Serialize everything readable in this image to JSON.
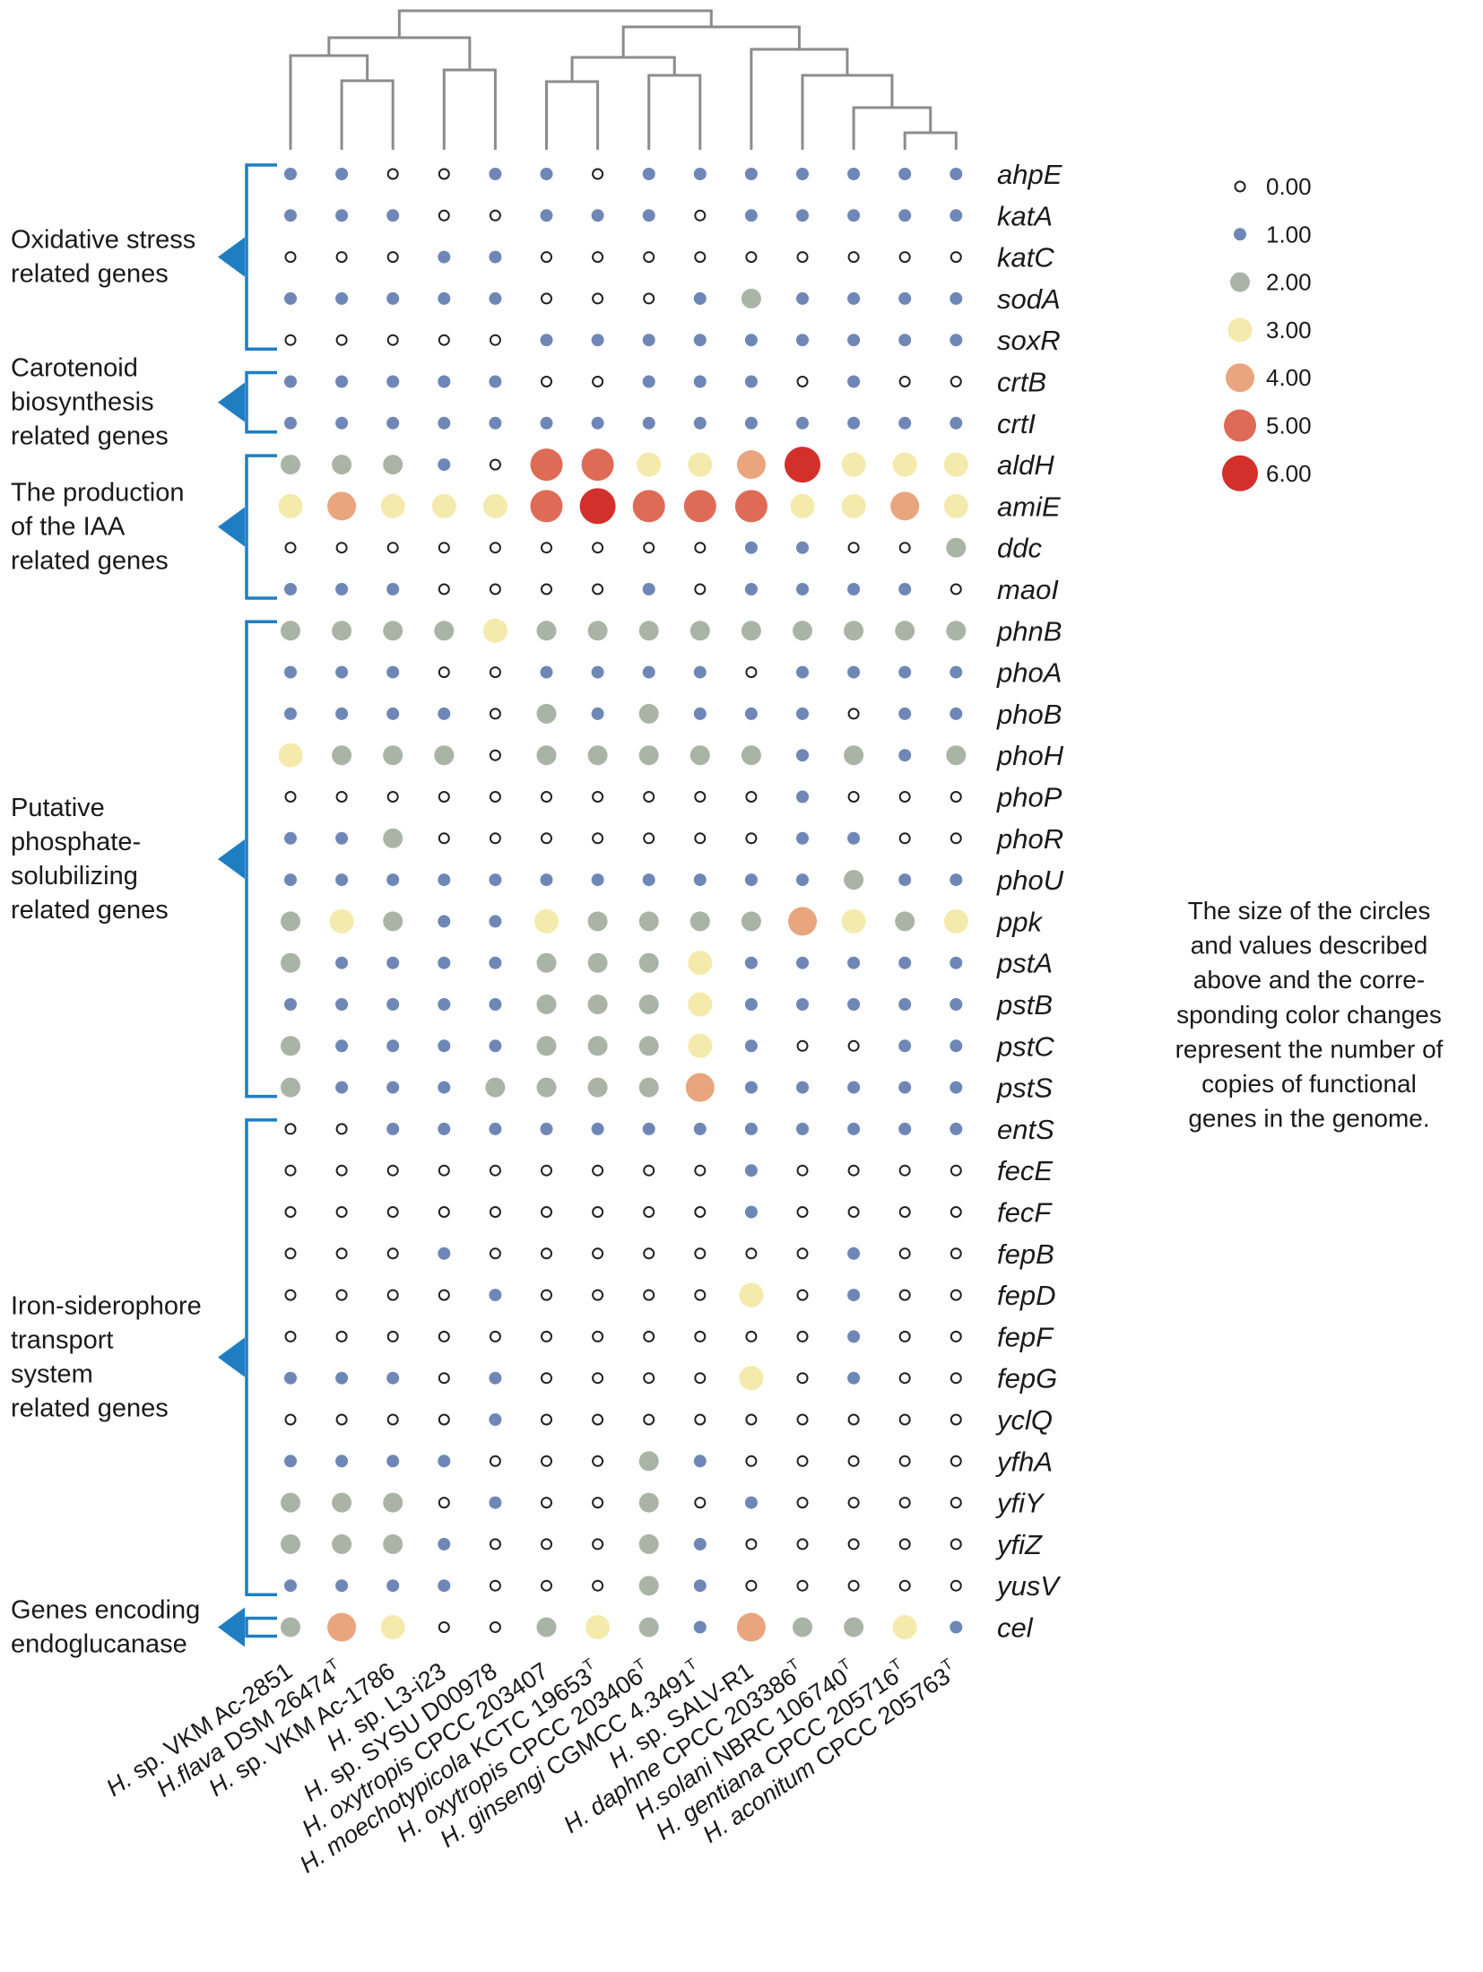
{
  "chart_data": {
    "type": "dot-matrix",
    "title": "",
    "value_meaning": "The size of the circles and values described above and the corresponding color changes represent the number of copies of functional genes in the genome.",
    "strains": [
      {
        "pre": "H.",
        "italic": "",
        "rest": " sp. VKM Ac-2851",
        "sup": ""
      },
      {
        "pre": "",
        "italic": "H.flava",
        "rest": " DSM 26474",
        "sup": "T"
      },
      {
        "pre": "H.",
        "italic": "",
        "rest": " sp. VKM Ac-1786",
        "sup": ""
      },
      {
        "pre": "H.",
        "italic": "",
        "rest": " sp. L3-i23",
        "sup": ""
      },
      {
        "pre": "H.",
        "italic": "",
        "rest": " sp. SYSU D00978",
        "sup": ""
      },
      {
        "pre": "",
        "italic": "H. oxytropis",
        "rest": " CPCC 203407",
        "sup": ""
      },
      {
        "pre": "",
        "italic": "H. moechotypicola",
        "rest": " KCTC 19653",
        "sup": "T"
      },
      {
        "pre": "",
        "italic": "H. oxytropis",
        "rest": " CPCC 203406",
        "sup": "T"
      },
      {
        "pre": "",
        "italic": "H. ginsengi",
        "rest": " CGMCC 4.3491",
        "sup": "T"
      },
      {
        "pre": "H.",
        "italic": "",
        "rest": " sp. SALV-R1",
        "sup": ""
      },
      {
        "pre": "",
        "italic": "H. daphne",
        "rest": " CPCC 203386",
        "sup": "T"
      },
      {
        "pre": "",
        "italic": "H.solani",
        "rest": " NBRC 106740",
        "sup": "T"
      },
      {
        "pre": "",
        "italic": "H. gentiana",
        "rest": " CPCC 205716",
        "sup": "T"
      },
      {
        "pre": "",
        "italic": "H. aconitum",
        "rest": " CPCC 205763",
        "sup": "T"
      }
    ],
    "genes": [
      "ahpE",
      "katA",
      "katC",
      "sodA",
      "soxR",
      "crtB",
      "crtI",
      "aldH",
      "amiE",
      "ddc",
      "maoI",
      "phnB",
      "phoA",
      "phoB",
      "phoH",
      "phoP",
      "phoR",
      "phoU",
      "ppk",
      "pstA",
      "pstB",
      "pstC",
      "pstS",
      "entS",
      "fecE",
      "fecF",
      "fepB",
      "fepD",
      "fepF",
      "fepG",
      "yclQ",
      "yfhA",
      "yfiY",
      "yfiZ",
      "yusV",
      "cel"
    ],
    "values": [
      [
        1,
        1,
        0,
        0,
        1,
        1,
        0,
        1,
        1,
        1,
        1,
        1,
        1,
        1
      ],
      [
        1,
        1,
        1,
        0,
        0,
        1,
        1,
        1,
        0,
        1,
        1,
        1,
        1,
        1
      ],
      [
        0,
        0,
        0,
        1,
        1,
        0,
        0,
        0,
        0,
        0,
        0,
        0,
        0,
        0
      ],
      [
        1,
        1,
        1,
        1,
        1,
        0,
        0,
        0,
        1,
        2,
        1,
        1,
        1,
        1
      ],
      [
        0,
        0,
        0,
        0,
        0,
        1,
        1,
        1,
        1,
        1,
        1,
        1,
        1,
        1
      ],
      [
        1,
        1,
        1,
        1,
        1,
        0,
        0,
        1,
        1,
        1,
        0,
        1,
        0,
        0
      ],
      [
        1,
        1,
        1,
        1,
        1,
        1,
        1,
        1,
        1,
        1,
        1,
        1,
        1,
        1
      ],
      [
        2,
        2,
        2,
        1,
        0,
        5,
        5,
        3,
        3,
        4,
        6,
        3,
        3,
        3
      ],
      [
        3,
        4,
        3,
        3,
        3,
        5,
        6,
        5,
        5,
        5,
        3,
        3,
        4,
        3
      ],
      [
        0,
        0,
        0,
        0,
        0,
        0,
        0,
        0,
        0,
        1,
        1,
        0,
        0,
        2
      ],
      [
        1,
        1,
        1,
        0,
        0,
        0,
        0,
        1,
        0,
        1,
        1,
        1,
        1,
        0
      ],
      [
        2,
        2,
        2,
        2,
        3,
        2,
        2,
        2,
        2,
        2,
        2,
        2,
        2,
        2
      ],
      [
        1,
        1,
        1,
        0,
        0,
        1,
        1,
        1,
        1,
        0,
        1,
        1,
        1,
        1
      ],
      [
        1,
        1,
        1,
        1,
        0,
        2,
        1,
        2,
        1,
        1,
        1,
        0,
        1,
        1
      ],
      [
        3,
        2,
        2,
        2,
        0,
        2,
        2,
        2,
        2,
        2,
        1,
        2,
        1,
        2
      ],
      [
        0,
        0,
        0,
        0,
        0,
        0,
        0,
        0,
        0,
        0,
        1,
        0,
        0,
        0
      ],
      [
        1,
        1,
        2,
        0,
        0,
        0,
        0,
        0,
        0,
        0,
        1,
        1,
        0,
        0
      ],
      [
        1,
        1,
        1,
        1,
        1,
        1,
        1,
        1,
        1,
        1,
        1,
        2,
        1,
        1
      ],
      [
        2,
        3,
        2,
        1,
        1,
        3,
        2,
        2,
        2,
        2,
        4,
        3,
        2,
        3
      ],
      [
        2,
        1,
        1,
        1,
        1,
        2,
        2,
        2,
        3,
        1,
        1,
        1,
        1,
        1
      ],
      [
        1,
        1,
        1,
        1,
        1,
        2,
        2,
        2,
        3,
        1,
        1,
        1,
        1,
        1
      ],
      [
        2,
        1,
        1,
        1,
        1,
        2,
        2,
        2,
        3,
        1,
        0,
        0,
        1,
        1
      ],
      [
        2,
        1,
        1,
        1,
        2,
        2,
        2,
        2,
        4,
        1,
        1,
        1,
        1,
        1
      ],
      [
        0,
        0,
        1,
        1,
        1,
        1,
        1,
        1,
        1,
        1,
        1,
        1,
        1,
        1
      ],
      [
        0,
        0,
        0,
        0,
        0,
        0,
        0,
        0,
        0,
        1,
        0,
        0,
        0,
        0
      ],
      [
        0,
        0,
        0,
        0,
        0,
        0,
        0,
        0,
        0,
        1,
        0,
        0,
        0,
        0
      ],
      [
        0,
        0,
        0,
        1,
        0,
        0,
        0,
        0,
        0,
        0,
        0,
        1,
        0,
        0
      ],
      [
        0,
        0,
        0,
        0,
        1,
        0,
        0,
        0,
        0,
        3,
        0,
        1,
        0,
        0
      ],
      [
        0,
        0,
        0,
        0,
        0,
        0,
        0,
        0,
        0,
        0,
        0,
        1,
        0,
        0
      ],
      [
        1,
        1,
        1,
        0,
        1,
        0,
        0,
        0,
        0,
        3,
        0,
        1,
        0,
        0
      ],
      [
        0,
        0,
        0,
        0,
        1,
        0,
        0,
        0,
        0,
        0,
        0,
        0,
        0,
        0
      ],
      [
        1,
        1,
        1,
        1,
        0,
        0,
        0,
        2,
        1,
        0,
        0,
        0,
        0,
        0
      ],
      [
        2,
        2,
        2,
        0,
        1,
        0,
        0,
        2,
        0,
        1,
        0,
        0,
        0,
        0
      ],
      [
        2,
        2,
        2,
        1,
        0,
        0,
        0,
        2,
        1,
        0,
        0,
        0,
        0,
        0
      ],
      [
        1,
        1,
        1,
        1,
        0,
        0,
        0,
        2,
        1,
        0,
        0,
        0,
        0,
        0
      ],
      [
        2,
        4,
        3,
        0,
        0,
        2,
        3,
        2,
        1,
        4,
        2,
        2,
        3,
        1
      ]
    ],
    "groups": [
      {
        "label": [
          "Oxidative stress",
          "related genes"
        ],
        "start": 0,
        "end": 4
      },
      {
        "label": [
          "Carotenoid",
          "biosynthesis",
          "related genes"
        ],
        "start": 5,
        "end": 6
      },
      {
        "label": [
          "The production",
          "of the IAA",
          "related genes"
        ],
        "start": 7,
        "end": 10
      },
      {
        "label": [
          "Putative",
          "phosphate-",
          "solubilizing",
          "related genes"
        ],
        "start": 11,
        "end": 22
      },
      {
        "label": [
          "Iron-siderophore",
          "transport",
          "system",
          "related genes"
        ],
        "start": 23,
        "end": 34
      },
      {
        "label": [
          "Genes encoding",
          "endoglucanase"
        ],
        "start": 35,
        "end": 35
      }
    ],
    "legend": [
      {
        "value": 0,
        "label": "0.00"
      },
      {
        "value": 1,
        "label": "1.00"
      },
      {
        "value": 2,
        "label": "2.00"
      },
      {
        "value": 3,
        "label": "3.00"
      },
      {
        "value": 4,
        "label": "4.00"
      },
      {
        "value": 5,
        "label": "5.00"
      },
      {
        "value": 6,
        "label": "6.00"
      }
    ],
    "colors": {
      "0": "#ffffff",
      "1": "#6f87b6",
      "2": "#a9b4a6",
      "3": "#f3eaac",
      "4": "#e9a57d",
      "5": "#de6b56",
      "6": "#d3302b",
      "zero_stroke": "#222222",
      "bracket": "#1f7ec2",
      "tree": "#8c8c8c"
    },
    "dendrogram": {
      "description": "Hierarchical clustering of the 14 strains by gene copy numbers",
      "merges": [
        [
          12,
          13
        ],
        [
          11,
          "n0"
        ],
        [
          10,
          "n1"
        ],
        [
          9,
          "n2"
        ],
        [
          5,
          6
        ],
        [
          7,
          8
        ],
        [
          "n4",
          "n5"
        ],
        [
          "n6",
          "n3"
        ],
        [
          1,
          2
        ],
        [
          0,
          "n8"
        ],
        [
          3,
          4
        ],
        [
          "n9",
          "n10"
        ],
        [
          "n11",
          "n7"
        ]
      ]
    },
    "note_lines": [
      "The size of the circles",
      "and values described",
      "above and the corre-",
      "sponding color changes",
      "represent the number of",
      "copies of functional",
      "genes in the genome."
    ]
  }
}
